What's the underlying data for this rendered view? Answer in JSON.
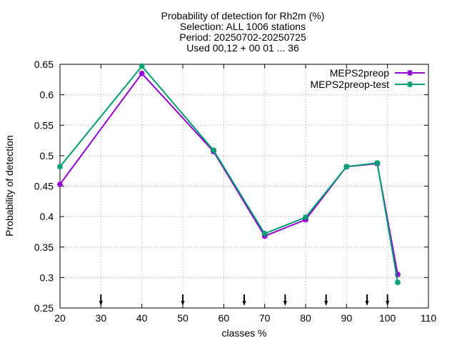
{
  "chart_data": {
    "type": "line",
    "title_lines": [
      "Probability of detection  for Rh2m (%)",
      "Selection: ALL   1006 stations",
      "Period: 20250702-20250725",
      "Used 00,12 + 00 01 ... 36"
    ],
    "xlabel": "classes %",
    "ylabel": "Probability of detection",
    "xlim": [
      20,
      110
    ],
    "ylim": [
      0.25,
      0.65
    ],
    "xticks": [
      20,
      30,
      40,
      50,
      60,
      70,
      80,
      90,
      100,
      110
    ],
    "yticks": [
      0.25,
      0.3,
      0.35,
      0.4,
      0.45,
      0.5,
      0.55,
      0.6,
      0.65
    ],
    "grid": true,
    "legend_position": "top-right",
    "series": [
      {
        "name": "MEPS2preop",
        "color": "#9400d3",
        "x": [
          20,
          40,
          57.5,
          70,
          80,
          90,
          97.5,
          102.5
        ],
        "y": [
          0.453,
          0.635,
          0.507,
          0.368,
          0.395,
          0.482,
          0.487,
          0.305
        ]
      },
      {
        "name": "MEPS2preop-test",
        "color": "#009e73",
        "x": [
          20,
          40,
          57.5,
          70,
          80,
          90,
          97.5,
          102.5
        ],
        "y": [
          0.482,
          0.647,
          0.509,
          0.372,
          0.399,
          0.482,
          0.488,
          0.292
        ]
      }
    ],
    "threshold_markers": [
      30,
      50,
      65,
      75,
      85,
      95,
      100
    ]
  }
}
